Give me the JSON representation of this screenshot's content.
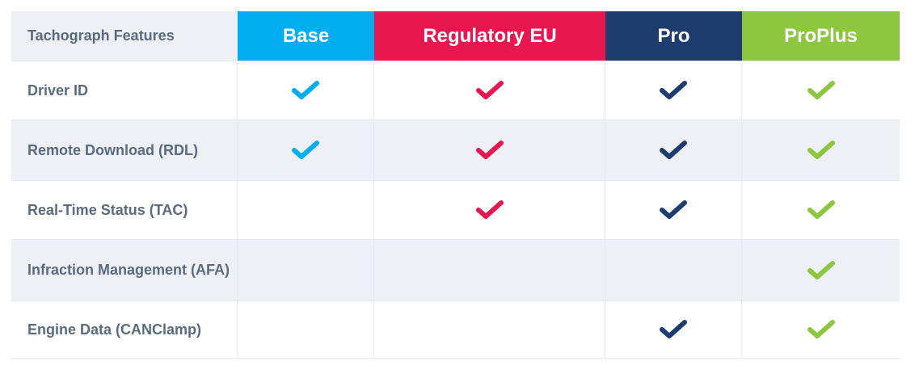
{
  "table": {
    "header": "Tachograph Features",
    "columns": [
      {
        "name": "Base",
        "color": "#00aeef"
      },
      {
        "name": "Regulatory EU",
        "color": "#e8174f"
      },
      {
        "name": "Pro",
        "color": "#1f3c6e"
      },
      {
        "name": "ProPlus",
        "color": "#8dc63f"
      }
    ],
    "rows": [
      {
        "feature": "Driver ID",
        "checks": [
          true,
          true,
          true,
          true
        ]
      },
      {
        "feature": "Remote Download (RDL)",
        "checks": [
          true,
          true,
          true,
          true
        ]
      },
      {
        "feature": "Real-Time Status (TAC)",
        "checks": [
          false,
          true,
          true,
          true
        ]
      },
      {
        "feature": "Infraction Management (AFA)",
        "checks": [
          false,
          false,
          false,
          true
        ]
      },
      {
        "feature": "Engine Data (CANClamp)",
        "checks": [
          false,
          false,
          true,
          true
        ]
      }
    ]
  }
}
